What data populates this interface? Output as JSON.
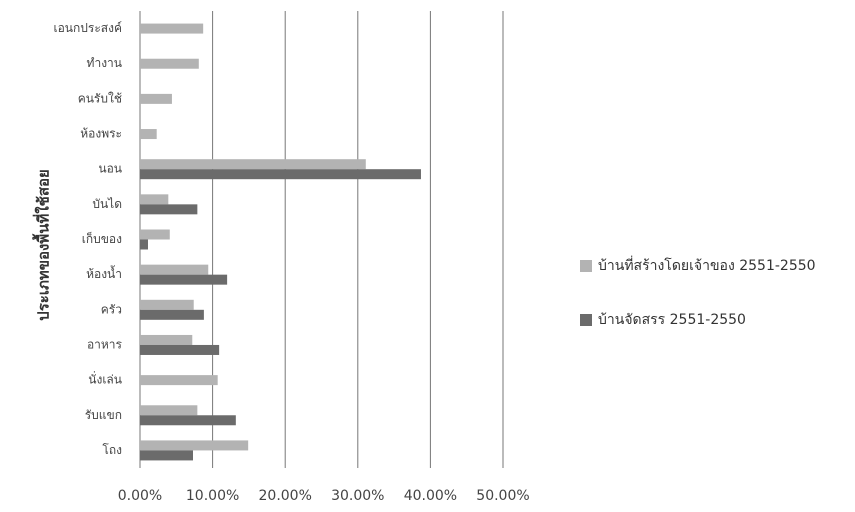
{
  "chart_data": {
    "type": "hbar",
    "y_axis_label": "ประเภทของพื้นที่ใช้สอย",
    "categories": [
      "เอนกประสงค์",
      "ทำงาน",
      "คนรับใช้",
      "ห้องพระ",
      "นอน",
      "บันได",
      "เก็บของ",
      "ห้องน้ำ",
      "ครัว",
      "อาหาร",
      "นั่งเล่น",
      "รับแขก",
      "โถง"
    ],
    "series": [
      {
        "name": "บ้านที่สร้างโดยเจ้าของ 2551-2550",
        "color": "#b3b3b3",
        "values": [
          8.7,
          8.1,
          4.4,
          2.3,
          31.1,
          3.9,
          4.1,
          9.4,
          7.4,
          7.2,
          10.7,
          7.9,
          14.9
        ]
      },
      {
        "name": "บ้านจัดสรร 2551-2550",
        "color": "#6b6b6b",
        "values": [
          null,
          null,
          null,
          null,
          38.7,
          7.9,
          1.1,
          12.0,
          8.8,
          10.9,
          null,
          13.2,
          7.3
        ]
      }
    ],
    "xlim": [
      0,
      50
    ],
    "xticks": [
      {
        "value": 0,
        "label": "0.00%"
      },
      {
        "value": 10,
        "label": "10.00%"
      },
      {
        "value": 20,
        "label": "20.00%"
      },
      {
        "value": 30,
        "label": "30.00%"
      },
      {
        "value": 40,
        "label": "40.00%"
      },
      {
        "value": 50,
        "label": "50.00%"
      }
    ],
    "grid": true,
    "legend": "right"
  }
}
